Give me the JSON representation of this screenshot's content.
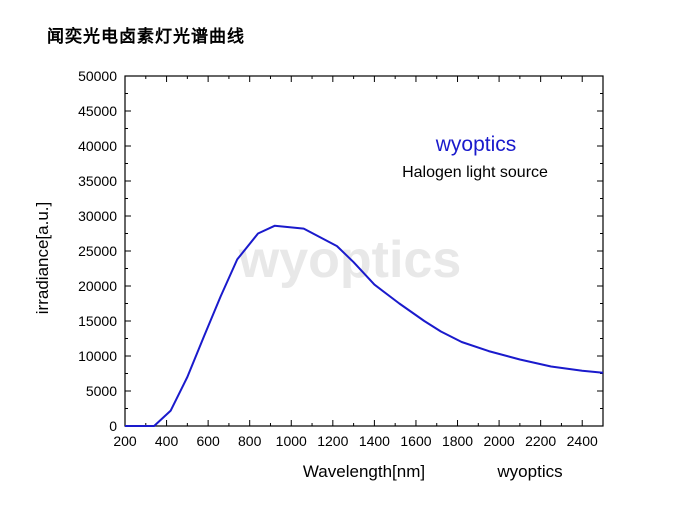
{
  "page": {
    "title": "闻奕光电卤素灯光谱曲线"
  },
  "chart_data": {
    "type": "line",
    "title": "",
    "xlabel": "Wavelength[nm]",
    "ylabel": "irradiance[a.u.]",
    "xlim": [
      200,
      2500
    ],
    "ylim": [
      0,
      50000
    ],
    "x_ticks": [
      200,
      400,
      600,
      800,
      1000,
      1200,
      1400,
      1600,
      1800,
      2000,
      2200,
      2400
    ],
    "y_ticks": [
      0,
      5000,
      10000,
      15000,
      20000,
      25000,
      30000,
      35000,
      40000,
      45000,
      50000
    ],
    "grid": false,
    "watermark": "wyoptics",
    "annotations": {
      "brand": "wyoptics",
      "source": "Halogen light source",
      "footer_brand": "wyoptics"
    },
    "line_color": "#1a1acc",
    "series": [
      {
        "values": [
          [
            200,
            0
          ],
          [
            340,
            0
          ],
          [
            420,
            2200
          ],
          [
            500,
            7000
          ],
          [
            580,
            12800
          ],
          [
            660,
            18500
          ],
          [
            740,
            23800
          ],
          [
            840,
            27500
          ],
          [
            920,
            28600
          ],
          [
            1060,
            28200
          ],
          [
            1220,
            25700
          ],
          [
            1300,
            23400
          ],
          [
            1400,
            20200
          ],
          [
            1520,
            17500
          ],
          [
            1640,
            15000
          ],
          [
            1720,
            13500
          ],
          [
            1820,
            12000
          ],
          [
            1950,
            10700
          ],
          [
            2100,
            9500
          ],
          [
            2250,
            8500
          ],
          [
            2400,
            7900
          ],
          [
            2500,
            7600
          ]
        ]
      }
    ]
  }
}
